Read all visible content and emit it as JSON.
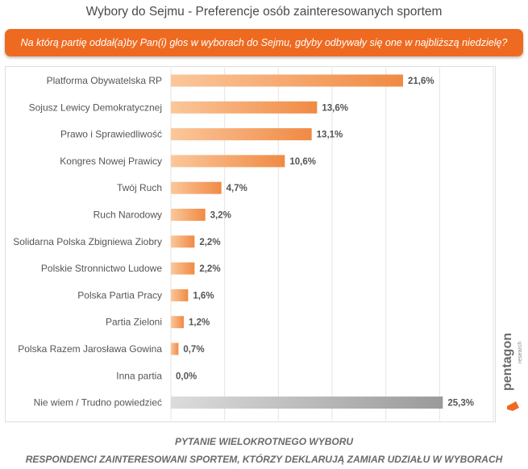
{
  "header": {
    "title": "Wybory do Sejmu - Preferencje osób zainteresowanych sportem",
    "question": "Na którą partię oddał(a)by Pan(i) głos w wyborach do Sejmu, gdyby odbywały się one w najbliższą niedzielę?"
  },
  "footer": {
    "line1": "PYTANIE WIELOKROTNEGO WYBORU",
    "line2": "RESPONDENCI ZAINTERESOWANI SPORTEM, KTÓRZY DEKLARUJĄ ZAMIAR UDZIAŁU W WYBORACH"
  },
  "logo": {
    "name": "pentagon",
    "sub": "research"
  },
  "colors": {
    "orange_light": "#fbc79b",
    "orange_dark": "#f08a44",
    "gray_light": "#dcdcdc",
    "gray_dark": "#9a9a9a",
    "accent": "#ef6a21"
  },
  "chart_data": {
    "type": "bar",
    "orientation": "horizontal",
    "title": "Wybory do Sejmu - Preferencje osób zainteresowanych sportem",
    "xlabel": "",
    "ylabel": "",
    "xlim": [
      0,
      30
    ],
    "grid": true,
    "unit": "%",
    "categories": [
      "Platforma Obywatelska RP",
      "Sojusz Lewicy Demokratycznej",
      "Prawo i Sprawiedliwość",
      "Kongres Nowej Prawicy",
      "Twój Ruch",
      "Ruch Narodowy",
      "Solidarna Polska Zbigniewa Ziobry",
      "Polskie Stronnictwo Ludowe",
      "Polska Partia Pracy",
      "Partia Zieloni",
      "Polska Razem Jarosława Gowina",
      "Inna partia",
      "Nie wiem / Trudno powiedzieć"
    ],
    "values": [
      21.6,
      13.6,
      13.1,
      10.6,
      4.7,
      3.2,
      2.2,
      2.2,
      1.6,
      1.2,
      0.7,
      0.0,
      25.3
    ],
    "value_labels": [
      "21,6%",
      "13,6%",
      "13,1%",
      "10,6%",
      "4,7%",
      "3,2%",
      "2,2%",
      "2,2%",
      "1,6%",
      "1,2%",
      "0,7%",
      "0,0%",
      "25,3%"
    ],
    "highlight": [
      false,
      false,
      false,
      false,
      false,
      false,
      false,
      false,
      false,
      false,
      false,
      false,
      true
    ]
  }
}
